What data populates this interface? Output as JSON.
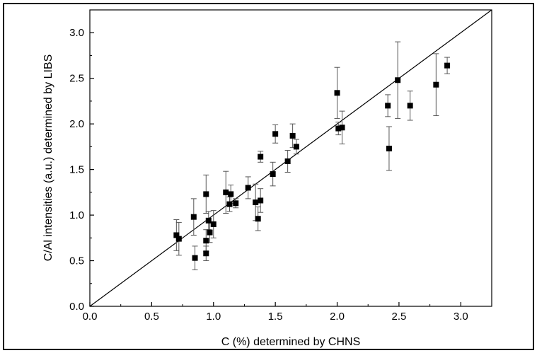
{
  "chart_data": {
    "type": "scatter",
    "title": "",
    "xlabel": "C (%) determined by CHNS",
    "ylabel": "C/Al intensities (a.u.) determined by LIBS",
    "xlim": [
      0.0,
      3.25
    ],
    "ylim": [
      0.0,
      3.25
    ],
    "x_ticks": [
      "0.0",
      "0.5",
      "1.0",
      "1.5",
      "2.0",
      "2.5",
      "3.0"
    ],
    "y_ticks": [
      "0.0",
      "0.5",
      "1.0",
      "1.5",
      "2.0",
      "2.5",
      "3.0"
    ],
    "x_tick_values": [
      0,
      0.5,
      1.0,
      1.5,
      2.0,
      2.5,
      3.0
    ],
    "y_tick_values": [
      0,
      0.5,
      1.0,
      1.5,
      2.0,
      2.5,
      3.0
    ],
    "grid": false,
    "reference_line": {
      "from": [
        0,
        0
      ],
      "to": [
        3.25,
        3.25
      ]
    },
    "marker_color": "#000000",
    "points": [
      {
        "x": 0.7,
        "y": 0.78,
        "err": 0.17
      },
      {
        "x": 0.72,
        "y": 0.74,
        "err": 0.18
      },
      {
        "x": 0.84,
        "y": 0.98,
        "err": 0.2
      },
      {
        "x": 0.85,
        "y": 0.53,
        "err": 0.13
      },
      {
        "x": 0.94,
        "y": 1.23,
        "err": 0.21
      },
      {
        "x": 0.94,
        "y": 0.72,
        "err": 0.12
      },
      {
        "x": 0.94,
        "y": 0.58,
        "err": 0.08
      },
      {
        "x": 0.96,
        "y": 0.94,
        "err": 0.1
      },
      {
        "x": 0.97,
        "y": 0.81,
        "err": 0.11
      },
      {
        "x": 1.0,
        "y": 0.9,
        "err": 0.15
      },
      {
        "x": 1.1,
        "y": 1.25,
        "err": 0.23
      },
      {
        "x": 1.13,
        "y": 1.12,
        "err": 0.08
      },
      {
        "x": 1.14,
        "y": 1.23,
        "err": 0.1
      },
      {
        "x": 1.18,
        "y": 1.13,
        "err": 0.05
      },
      {
        "x": 1.28,
        "y": 1.3,
        "err": 0.12
      },
      {
        "x": 1.34,
        "y": 1.14,
        "err": 0.2
      },
      {
        "x": 1.36,
        "y": 0.96,
        "err": 0.13
      },
      {
        "x": 1.38,
        "y": 1.16,
        "err": 0.13
      },
      {
        "x": 1.38,
        "y": 1.64,
        "err": 0.06
      },
      {
        "x": 1.48,
        "y": 1.45,
        "err": 0.13
      },
      {
        "x": 1.5,
        "y": 1.89,
        "err": 0.1
      },
      {
        "x": 1.6,
        "y": 1.59,
        "err": 0.12
      },
      {
        "x": 1.64,
        "y": 1.87,
        "err": 0.13
      },
      {
        "x": 1.67,
        "y": 1.75,
        "err": 0.08
      },
      {
        "x": 2.0,
        "y": 2.34,
        "err": 0.28
      },
      {
        "x": 2.01,
        "y": 1.95,
        "err": 0.07
      },
      {
        "x": 2.04,
        "y": 1.96,
        "err": 0.18
      },
      {
        "x": 2.41,
        "y": 2.2,
        "err": 0.12
      },
      {
        "x": 2.42,
        "y": 1.73,
        "err": 0.24
      },
      {
        "x": 2.49,
        "y": 2.48,
        "err": 0.42
      },
      {
        "x": 2.59,
        "y": 2.2,
        "err": 0.16
      },
      {
        "x": 2.8,
        "y": 2.43,
        "err": 0.34
      },
      {
        "x": 2.89,
        "y": 2.64,
        "err": 0.09
      }
    ]
  }
}
